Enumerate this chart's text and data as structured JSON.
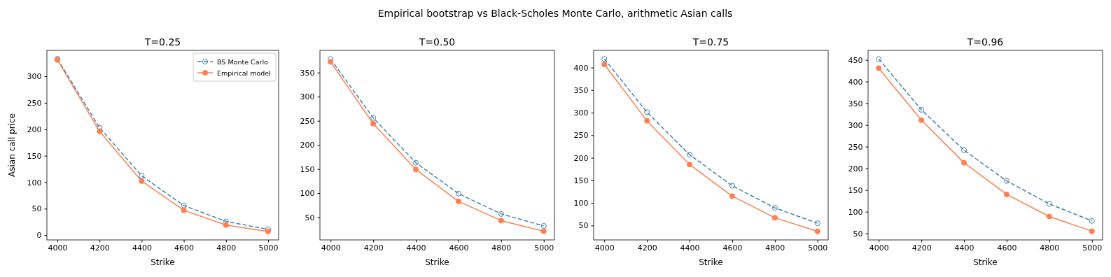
{
  "chart_data": [
    {
      "type": "line",
      "title": "T=0.25",
      "annotations": [
        "Empirical bootstrap vs Black-Scholes Monte Carlo, arithmetic Asian calls"
      ],
      "xlabel": "Strike",
      "ylabel": "Asian call price",
      "x": [
        4000,
        4200,
        4400,
        4600,
        4800,
        5000
      ],
      "xlim": [
        3950,
        5050
      ],
      "xticks": [
        4000,
        4200,
        4400,
        4600,
        4800,
        5000
      ],
      "ylim": [
        -9,
        349
      ],
      "yticks": [
        0,
        50,
        100,
        150,
        200,
        250,
        300
      ],
      "marker": "circle",
      "legend": "top right",
      "grid": false,
      "series": [
        {
          "name": "BS Monte Carlo",
          "color": "#4682b4",
          "line_style": "dashed",
          "values": [
            333,
            203,
            112,
            56,
            26,
            11
          ]
        },
        {
          "name": "Empirical model",
          "color": "#ff7f50",
          "line_style": "solid",
          "values": [
            331,
            196,
            102,
            47,
            19,
            7
          ]
        }
      ]
    },
    {
      "type": "line",
      "title": "T=0.50",
      "xlabel": "Strike",
      "x": [
        4000,
        4200,
        4400,
        4600,
        4800,
        5000
      ],
      "xlim": [
        3950,
        5050
      ],
      "xticks": [
        4000,
        4200,
        4400,
        4600,
        4800,
        5000
      ],
      "ylim": [
        3,
        396
      ],
      "yticks": [
        50,
        100,
        150,
        200,
        250,
        300,
        350
      ],
      "marker": "circle",
      "grid": false,
      "series": [
        {
          "color": "#4682b4",
          "line_style": "dashed",
          "values": [
            378,
            256,
            163,
            99,
            57,
            32
          ]
        },
        {
          "color": "#ff7f50",
          "line_style": "solid",
          "values": [
            372,
            244,
            149,
            83,
            43,
            21
          ]
        }
      ]
    },
    {
      "type": "line",
      "title": "T=0.75",
      "xlabel": "Strike",
      "x": [
        4000,
        4200,
        4400,
        4600,
        4800,
        5000
      ],
      "xlim": [
        3950,
        5050
      ],
      "xticks": [
        4000,
        4200,
        4400,
        4600,
        4800,
        5000
      ],
      "ylim": [
        18,
        438
      ],
      "yticks": [
        50,
        100,
        150,
        200,
        250,
        300,
        350,
        400
      ],
      "marker": "circle",
      "grid": false,
      "series": [
        {
          "color": "#4682b4",
          "line_style": "dashed",
          "values": [
            419,
            301,
            207,
            138,
            89,
            55
          ]
        },
        {
          "color": "#ff7f50",
          "line_style": "solid",
          "values": [
            407,
            282,
            185,
            115,
            67,
            37
          ]
        }
      ]
    },
    {
      "type": "line",
      "title": "T=0.96",
      "xlabel": "Strike",
      "x": [
        4000,
        4200,
        4400,
        4600,
        4800,
        5000
      ],
      "xlim": [
        3950,
        5050
      ],
      "xticks": [
        4000,
        4200,
        4400,
        4600,
        4800,
        5000
      ],
      "ylim": [
        35,
        472
      ],
      "yticks": [
        50,
        100,
        150,
        200,
        250,
        300,
        350,
        400,
        450
      ],
      "marker": "circle",
      "grid": false,
      "series": [
        {
          "color": "#4682b4",
          "line_style": "dashed",
          "values": [
            452,
            335,
            242,
            171,
            118,
            79
          ]
        },
        {
          "color": "#ff7f50",
          "line_style": "solid",
          "values": [
            431,
            311,
            213,
            140,
            89,
            55
          ]
        }
      ]
    }
  ]
}
